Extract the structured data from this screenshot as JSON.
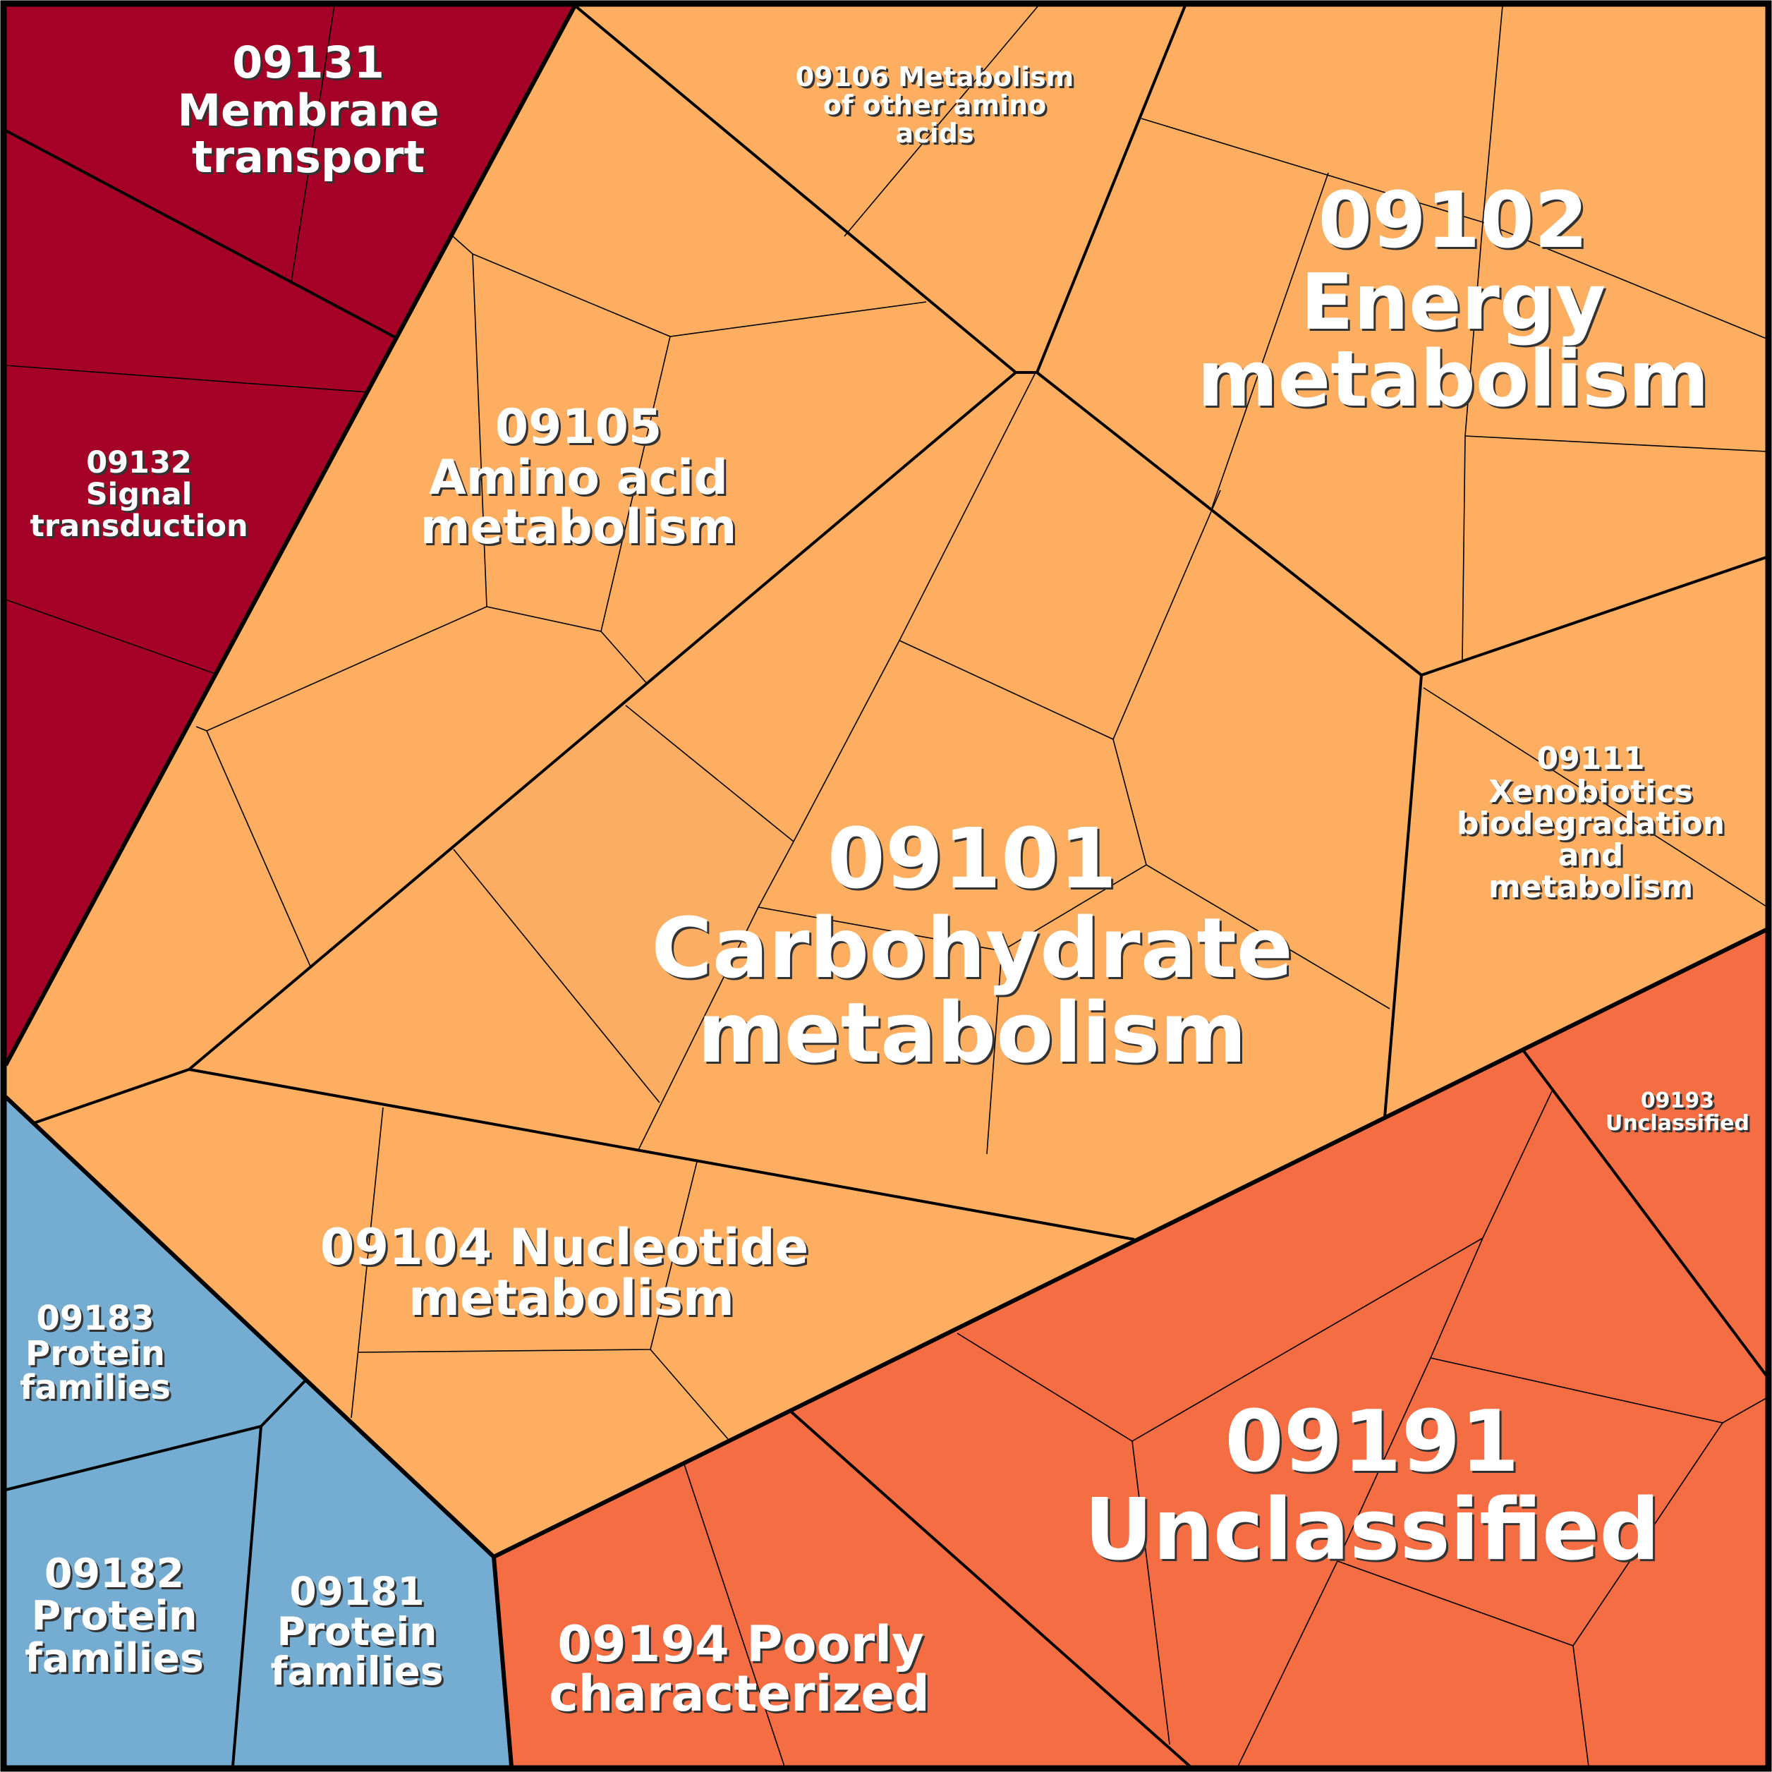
{
  "colors": {
    "membrane_signal": "#A50026",
    "metabolism": "#FDAE61",
    "metabolism_alt": "#FBAD64",
    "unclassified": "#F46D43",
    "protein_families": "#74ADD1",
    "border": "#000000",
    "label": "#FFFFFF"
  },
  "labels": {
    "c09131": [
      "09131",
      "Membrane",
      "transport"
    ],
    "c09132": [
      "09132",
      "Signal",
      "transduction"
    ],
    "c09106": [
      "09106 Metabolism",
      "of other amino",
      "acids"
    ],
    "c09102": [
      "09102",
      "Energy",
      "metabolism"
    ],
    "c09105": [
      "09105",
      "Amino acid",
      "metabolism"
    ],
    "c09101": [
      "09101",
      "Carbohydrate",
      "metabolism"
    ],
    "c09111": [
      "09111",
      "Xenobiotics",
      "biodegradation",
      "and",
      "metabolism"
    ],
    "c09193": [
      "09193",
      "Unclassified"
    ],
    "c09104": [
      "09104 Nucleotide",
      "metabolism"
    ],
    "c09183": [
      "09183",
      "Protein",
      "families"
    ],
    "c09191": [
      "09191",
      "Unclassified"
    ],
    "c09182": [
      "09182",
      "Protein",
      "families"
    ],
    "c09181": [
      "09181",
      "Protein",
      "families"
    ],
    "c09194": [
      "09194 Poorly",
      "characterized"
    ]
  }
}
